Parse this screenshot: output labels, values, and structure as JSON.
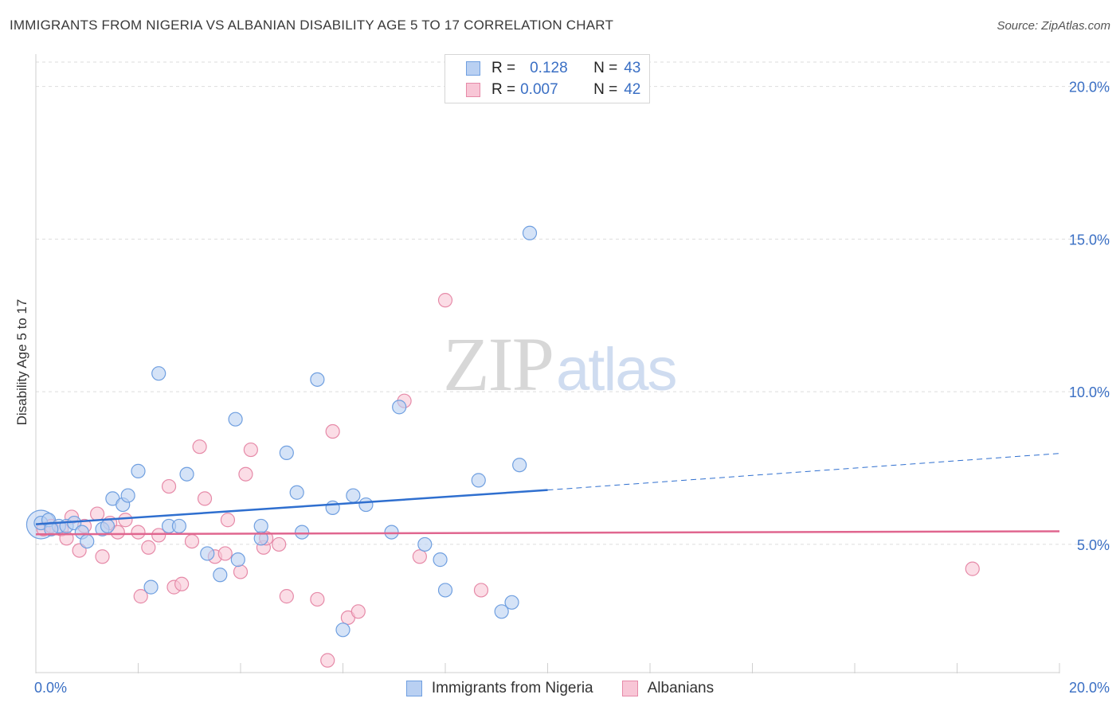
{
  "title": "IMMIGRANTS FROM NIGERIA VS ALBANIAN DISABILITY AGE 5 TO 17 CORRELATION CHART",
  "source": "Source: ZipAtlas.com",
  "watermark": {
    "zip": "ZIP",
    "atlas": "atlas"
  },
  "legend": {
    "rows": [
      {
        "r_label": "R =",
        "r_value": "0.128",
        "n_label": "N =",
        "n_value": "43",
        "color": "#6f9fe0",
        "fill": "#b9d0f2"
      },
      {
        "r_label": "R =",
        "r_value": "0.007",
        "n_label": "N =",
        "n_value": "42",
        "color": "#e68aa8",
        "fill": "#f8c6d6"
      }
    ]
  },
  "colors": {
    "blue_stroke": "#6f9fe0",
    "blue_fill": "#b9d0f2",
    "blue_line": "#2f6fcf",
    "pink_stroke": "#e68aa8",
    "pink_fill": "#f8c6d6",
    "pink_line": "#e0668f",
    "tick_text": "#3a6fc4",
    "grid": "#dddddd"
  },
  "chart_data": {
    "type": "scatter",
    "title": "IMMIGRANTS FROM NIGERIA VS ALBANIAN DISABILITY AGE 5 TO 17 CORRELATION CHART",
    "xlabel": "",
    "ylabel": "Disability Age 5 to 17",
    "xlim": [
      0,
      20
    ],
    "ylim": [
      0.8,
      20.8
    ],
    "x_tick_labels": [
      "0.0%",
      "20.0%"
    ],
    "y_ticks": [
      5,
      10,
      15,
      20
    ],
    "y_tick_labels": [
      "5.0%",
      "10.0%",
      "15.0%",
      "20.0%"
    ],
    "grid": true,
    "series": [
      {
        "name": "Immigrants from Nigeria",
        "color": "#6f9fe0",
        "points": [
          [
            0.1,
            5.7
          ],
          [
            0.25,
            5.8
          ],
          [
            0.45,
            5.6
          ],
          [
            0.6,
            5.6
          ],
          [
            0.75,
            5.7
          ],
          [
            0.9,
            5.4
          ],
          [
            1.0,
            5.1
          ],
          [
            1.3,
            5.5
          ],
          [
            1.5,
            6.5
          ],
          [
            1.7,
            6.3
          ],
          [
            1.8,
            6.6
          ],
          [
            2.0,
            7.4
          ],
          [
            2.25,
            3.6
          ],
          [
            2.4,
            10.6
          ],
          [
            2.6,
            5.6
          ],
          [
            2.8,
            5.6
          ],
          [
            2.95,
            7.3
          ],
          [
            3.35,
            4.7
          ],
          [
            3.6,
            4.0
          ],
          [
            3.9,
            9.1
          ],
          [
            3.95,
            4.5
          ],
          [
            4.4,
            5.2
          ],
          [
            4.4,
            5.6
          ],
          [
            4.9,
            8.0
          ],
          [
            5.1,
            6.7
          ],
          [
            5.2,
            5.4
          ],
          [
            5.5,
            10.4
          ],
          [
            5.8,
            6.2
          ],
          [
            6.0,
            2.2
          ],
          [
            6.2,
            6.6
          ],
          [
            6.45,
            6.3
          ],
          [
            6.95,
            5.4
          ],
          [
            7.1,
            9.5
          ],
          [
            7.6,
            5.0
          ],
          [
            7.9,
            4.5
          ],
          [
            8.0,
            3.5
          ],
          [
            8.65,
            7.1
          ],
          [
            9.1,
            2.8
          ],
          [
            9.3,
            3.1
          ],
          [
            9.45,
            7.6
          ],
          [
            9.65,
            15.2
          ],
          [
            1.4,
            5.6
          ],
          [
            0.3,
            5.5
          ]
        ],
        "trend": {
          "x0": 0,
          "y0": 5.66,
          "x1": 10.0,
          "y1": 6.78,
          "dashed_to_x": 20.0,
          "dashed_to_y": 7.98
        }
      },
      {
        "name": "Albanians",
        "color": "#e68aa8",
        "points": [
          [
            0.15,
            5.5
          ],
          [
            0.3,
            5.6
          ],
          [
            0.5,
            5.5
          ],
          [
            0.6,
            5.2
          ],
          [
            0.7,
            5.9
          ],
          [
            0.85,
            4.8
          ],
          [
            0.95,
            5.6
          ],
          [
            1.2,
            6.0
          ],
          [
            1.3,
            4.6
          ],
          [
            1.45,
            5.7
          ],
          [
            1.6,
            5.4
          ],
          [
            1.75,
            5.8
          ],
          [
            2.0,
            5.4
          ],
          [
            2.05,
            3.3
          ],
          [
            2.2,
            4.9
          ],
          [
            2.4,
            5.3
          ],
          [
            2.6,
            6.9
          ],
          [
            2.7,
            3.6
          ],
          [
            2.85,
            3.7
          ],
          [
            3.05,
            5.1
          ],
          [
            3.2,
            8.2
          ],
          [
            3.3,
            6.5
          ],
          [
            3.5,
            4.6
          ],
          [
            3.7,
            4.7
          ],
          [
            3.75,
            5.8
          ],
          [
            4.0,
            4.1
          ],
          [
            4.1,
            7.3
          ],
          [
            4.2,
            8.1
          ],
          [
            4.45,
            4.9
          ],
          [
            4.5,
            5.2
          ],
          [
            4.75,
            5.0
          ],
          [
            4.9,
            3.3
          ],
          [
            5.5,
            3.2
          ],
          [
            5.7,
            1.2
          ],
          [
            5.8,
            8.7
          ],
          [
            6.1,
            2.6
          ],
          [
            6.3,
            2.8
          ],
          [
            7.2,
            9.7
          ],
          [
            7.5,
            4.6
          ],
          [
            8.0,
            13.0
          ],
          [
            8.7,
            3.5
          ],
          [
            18.3,
            4.2
          ]
        ],
        "trend": {
          "x0": 0,
          "y0": 5.33,
          "x1": 20.0,
          "y1": 5.43
        }
      }
    ]
  },
  "bottom_legend": [
    {
      "label": "Immigrants from Nigeria",
      "color": "#6f9fe0",
      "fill": "#b9d0f2"
    },
    {
      "label": "Albanians",
      "color": "#e68aa8",
      "fill": "#f8c6d6"
    }
  ]
}
